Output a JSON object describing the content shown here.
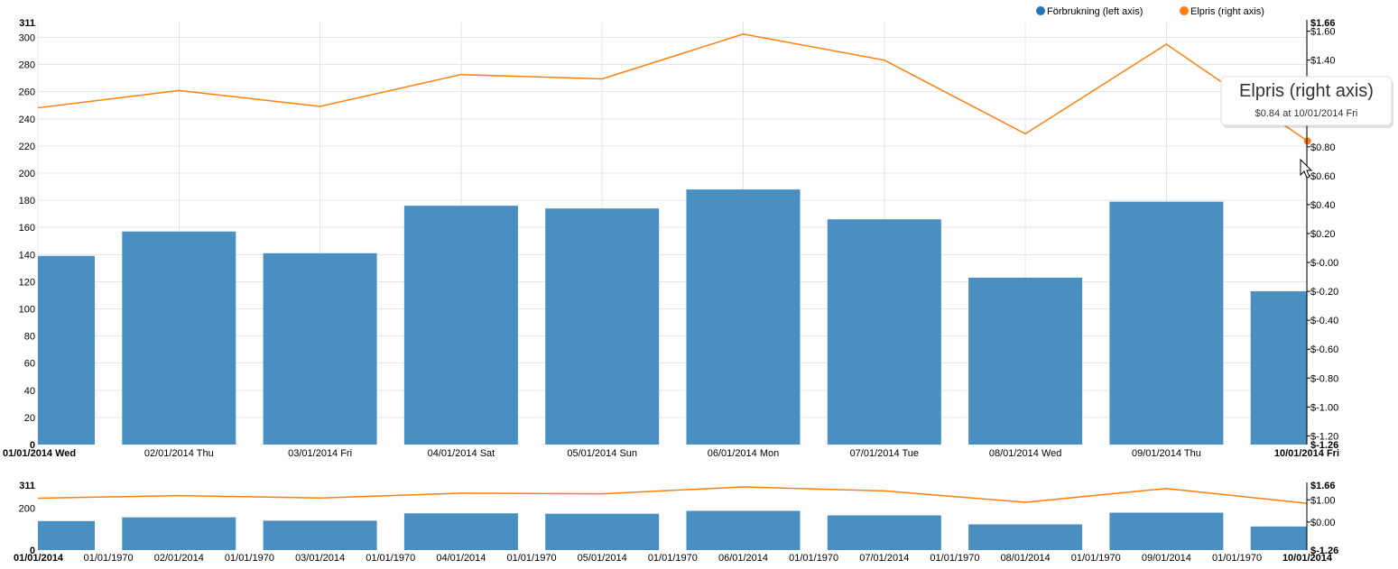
{
  "chart_data": {
    "type": "bar",
    "categories": [
      "01/01/2014 Wed",
      "02/01/2014 Thu",
      "03/01/2014 Fri",
      "04/01/2014 Sat",
      "05/01/2014 Sun",
      "06/01/2014 Mon",
      "07/01/2014 Tue",
      "08/01/2014 Wed",
      "09/01/2014 Thu",
      "10/01/2014 Fri"
    ],
    "series": [
      {
        "name": "Förbrukning (left axis)",
        "type": "bar",
        "axis": "left",
        "color": "#1f77b4",
        "values": [
          139,
          157,
          141,
          176,
          174,
          188,
          166,
          123,
          179,
          113
        ]
      },
      {
        "name": "Elpris (right axis)",
        "type": "line",
        "axis": "right",
        "color": "#ff7f0e",
        "values": [
          1.07,
          1.19,
          1.08,
          1.3,
          1.27,
          1.58,
          1.4,
          0.89,
          1.51,
          0.84
        ]
      }
    ],
    "left_axis": {
      "ylim": [
        0,
        311
      ],
      "ticks": [
        "20",
        "40",
        "60",
        "80",
        "100",
        "120",
        "140",
        "160",
        "180",
        "200",
        "220",
        "240",
        "260",
        "280",
        "300"
      ],
      "min_label": "0",
      "max_label": "311"
    },
    "right_axis": {
      "ylim": [
        -1.26,
        1.66
      ],
      "ticks": [
        "$-1.20",
        "$-1.00",
        "$-0.80",
        "$-0.60",
        "$-0.40",
        "$-0.20",
        "$-0.00",
        "$0.20",
        "$0.40",
        "$0.60",
        "$0.80",
        "$1.00",
        "$1.20",
        "$1.40",
        "$1.60"
      ],
      "min_label": "$-1.26",
      "max_label": "$1.66"
    },
    "x_edge_labels": [
      "01/01/2014 Wed",
      "10/01/2014 Fri"
    ],
    "legend": {
      "position": "top-right"
    },
    "tooltip": {
      "title": "Elpris (right axis)",
      "body": "$0.84 at 10/01/2014 Fri",
      "series_index": 1,
      "point_index": 9
    },
    "context": {
      "left_axis": {
        "min_label": "0",
        "mid_label": "200",
        "max_label": "311"
      },
      "right_axis": {
        "min_label": "$-1.26",
        "mid_labels": [
          "$0.00",
          "$1.00"
        ],
        "max_label": "$1.66"
      },
      "x_labels": [
        "01/01/2014",
        "01/01/1970",
        "02/01/2014",
        "01/01/1970",
        "03/01/2014",
        "01/01/1970",
        "04/01/2014",
        "01/01/1970",
        "05/01/2014",
        "01/01/1970",
        "06/01/2014",
        "01/01/1970",
        "07/01/2014",
        "01/01/1970",
        "08/01/2014",
        "01/01/1970",
        "09/01/2014",
        "01/01/1970",
        "10/01/2014"
      ]
    }
  }
}
